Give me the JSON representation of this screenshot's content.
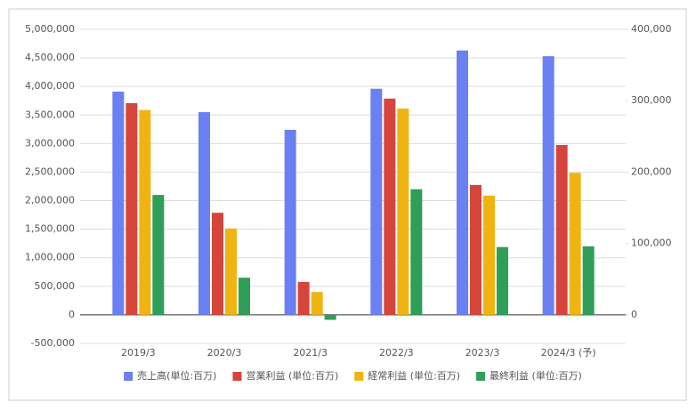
{
  "chart_data": {
    "type": "bar",
    "categories": [
      "2019/3",
      "2020/3",
      "2021/3",
      "2022/3",
      "2023/3",
      "2024/3 (予)"
    ],
    "series": [
      {
        "name": "売上高(単位:百万)",
        "color": "#6b80f2",
        "values": [
          3910000,
          3550000,
          3240000,
          3960000,
          4630000,
          4530000
        ]
      },
      {
        "name": "営業利益 (単位:百万)",
        "color": "#d6453b",
        "axis": "y2",
        "values": [
          296600,
          143000,
          46000,
          303000,
          182000,
          238000
        ]
      },
      {
        "name": "経常利益 (単位:百万)",
        "color": "#f0b412",
        "axis": "y2",
        "values": [
          287000,
          121000,
          32000,
          289000,
          167000,
          199000
        ]
      },
      {
        "name": "最終利益 (単位:百万)",
        "color": "#2f9e58",
        "axis": "y2",
        "values": [
          168000,
          52000,
          -7000,
          176000,
          95000,
          96000
        ]
      }
    ],
    "ylim": [
      -500000,
      5000000
    ],
    "yticks": [
      {
        "value": -500000,
        "label": "-500,000"
      },
      0,
      {
        "value": 500000,
        "label": "500,000"
      },
      {
        "value": 1000000,
        "label": "1,000,000"
      },
      {
        "value": 1500000,
        "label": "1,500,000"
      },
      {
        "value": 2000000,
        "label": "2,000,000"
      },
      {
        "value": 2500000,
        "label": "2,500,000"
      },
      {
        "value": 3000000,
        "label": "3,000,000"
      },
      {
        "value": 3500000,
        "label": "3,500,000"
      },
      {
        "value": 4000000,
        "label": "4,000,000"
      },
      {
        "value": 4500000,
        "label": "4,500,000"
      },
      {
        "value": 5000000,
        "label": "5,000,000"
      }
    ],
    "y2lim": [
      -40000,
      400000
    ],
    "y2ticks": [
      0,
      {
        "value": 100000,
        "label": "100,000"
      },
      {
        "value": 200000,
        "label": "200,000"
      },
      {
        "value": 300000,
        "label": "300,000"
      },
      {
        "value": 400000,
        "label": "400,000"
      }
    ],
    "grid": true,
    "legend": "bottom"
  }
}
